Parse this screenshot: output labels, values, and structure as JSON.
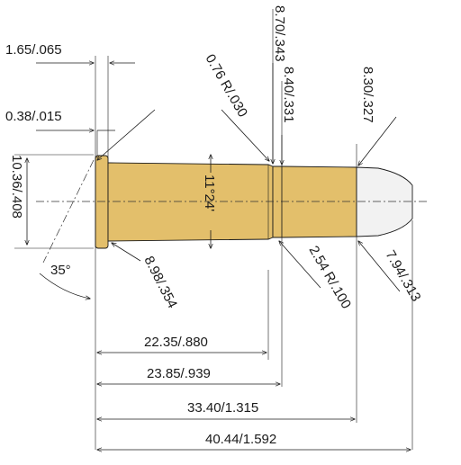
{
  "colors": {
    "case_fill": "#e3bf6b",
    "bullet_fill": "#f2f2f2",
    "line": "#1a1a1a"
  },
  "labels": {
    "rim_thickness": "1.65/.065",
    "rebate": "0.38/.015",
    "rim_diameter": "10.36/.408",
    "extractor_angle": "35°",
    "base_diameter": "8.98/.354",
    "shoulder_radius": "0.76 R/.030",
    "shoulder_diameter": "8.70/.343",
    "neck_diameter": "8.40/.331",
    "bullet_diameter": "8.30/.327",
    "taper_angle": "11°24'",
    "neck_radius": "2.54 R/.100",
    "bullet_ogive_diameter": "7.94/.313",
    "length_to_shoulder": "22.35/.880",
    "case_length": "23.85/.939",
    "length_to_bullet": "33.40/1.315",
    "overall_length": "40.44/1.592"
  }
}
